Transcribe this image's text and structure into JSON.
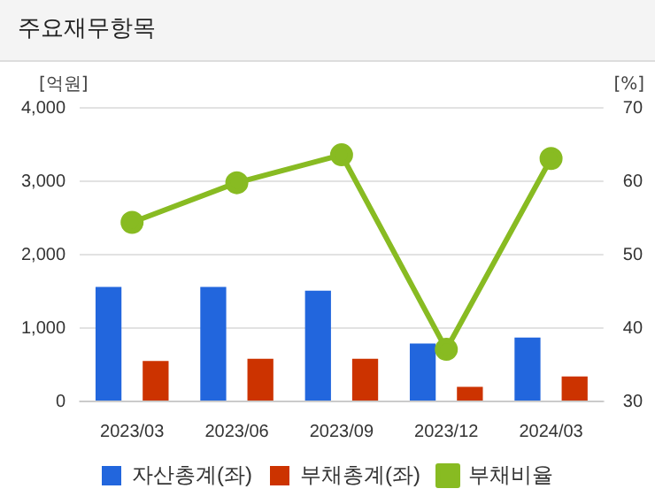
{
  "chart_data": {
    "type": "bar",
    "title": "주요재무항목",
    "ylabel": "[억원]",
    "y2label": "[%]",
    "categories": [
      "2023/03",
      "2023/06",
      "2023/09",
      "2023/12",
      "2024/03"
    ],
    "series": [
      {
        "name": "자산총계(좌)",
        "color": "#2266dd",
        "values": [
          1560,
          1560,
          1510,
          790,
          870
        ]
      },
      {
        "name": "부채총계(좌)",
        "color": "#cc3300",
        "values": [
          550,
          580,
          580,
          200,
          340
        ]
      },
      {
        "name": "부채비율",
        "type": "line",
        "axis": "y2",
        "color": "#88bb22",
        "values": [
          54.4,
          59.8,
          63.6,
          37.1,
          63.1
        ]
      }
    ],
    "ylim": [
      0,
      4000
    ],
    "yticks": [
      0,
      {
        "value": 1000,
        "label": "1,000"
      },
      {
        "value": 2000,
        "label": "2,000"
      },
      {
        "value": 3000,
        "label": "3,000"
      },
      {
        "value": 4000,
        "label": "4,000"
      }
    ],
    "y2lim": [
      30,
      70
    ],
    "y2ticks": [
      30,
      40,
      50,
      60,
      70
    ],
    "grid": "y",
    "legend": "bottom",
    "marker": "circle"
  }
}
